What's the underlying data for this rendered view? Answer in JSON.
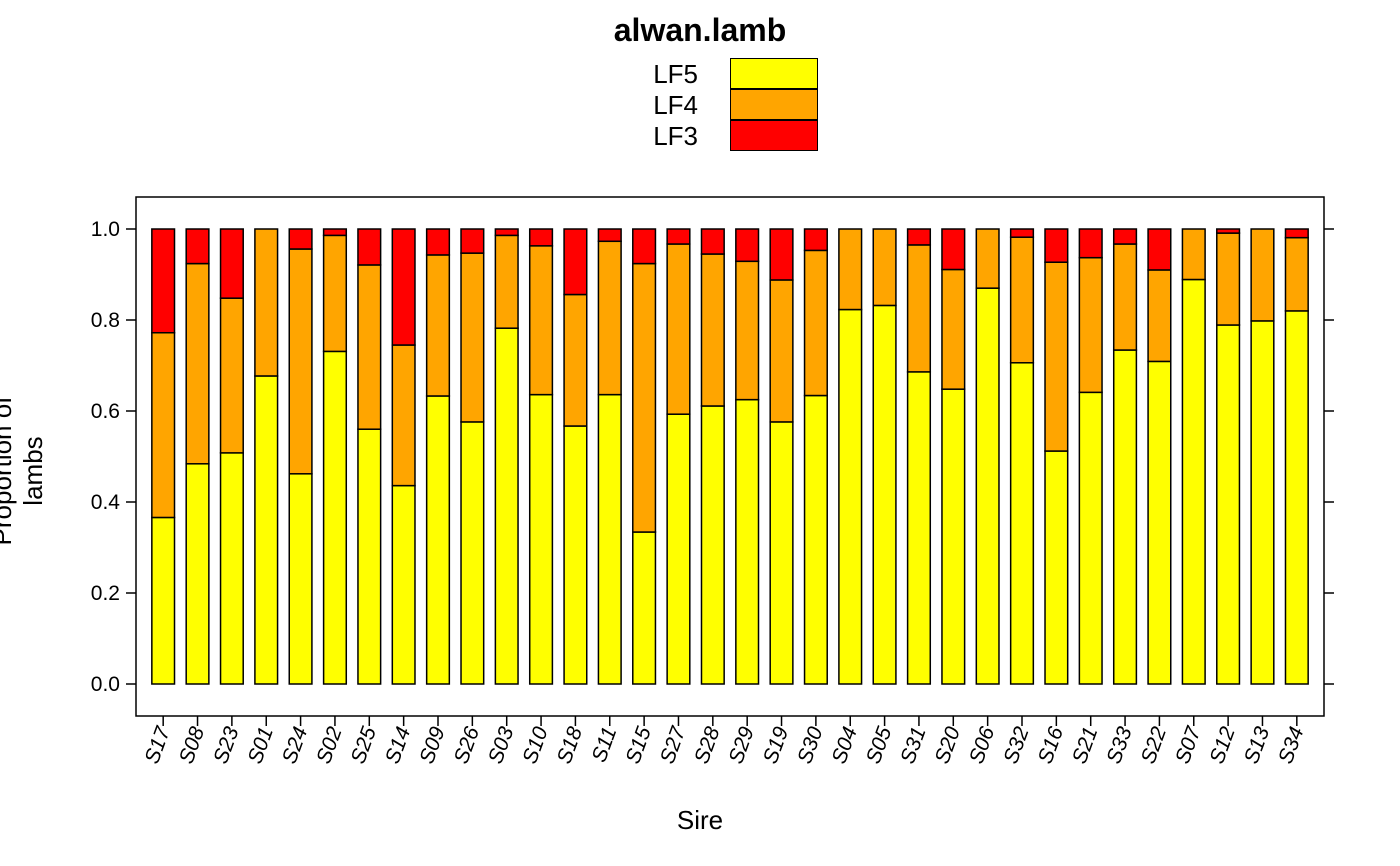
{
  "chart_data": {
    "type": "bar",
    "stacked": true,
    "title": "alwan.lamb",
    "xlabel": "Sire",
    "ylabel": "Proportion of lambs",
    "ylim": [
      0,
      1
    ],
    "yticks": [
      "0.0",
      "0.2",
      "0.4",
      "0.6",
      "0.8",
      "1.0"
    ],
    "legend_position": "top",
    "categories": [
      "S17",
      "S08",
      "S23",
      "S01",
      "S24",
      "S02",
      "S25",
      "S14",
      "S09",
      "S26",
      "S03",
      "S10",
      "S18",
      "S11",
      "S15",
      "S27",
      "S28",
      "S29",
      "S19",
      "S30",
      "S04",
      "S05",
      "S31",
      "S20",
      "S06",
      "S32",
      "S16",
      "S21",
      "S33",
      "S22",
      "S07",
      "S12",
      "S13",
      "S34"
    ],
    "series": [
      {
        "name": "LF5",
        "color": "#ffff00",
        "values": [
          0.366,
          0.484,
          0.508,
          0.677,
          0.462,
          0.731,
          0.56,
          0.436,
          0.633,
          0.576,
          0.782,
          0.636,
          0.567,
          0.636,
          0.334,
          0.593,
          0.611,
          0.625,
          0.576,
          0.634,
          0.823,
          0.832,
          0.686,
          0.648,
          0.87,
          0.706,
          0.512,
          0.641,
          0.734,
          0.709,
          0.889,
          0.789,
          0.798,
          0.82
        ]
      },
      {
        "name": "LF4",
        "color": "#ffa500",
        "values": [
          0.406,
          0.44,
          0.34,
          0.323,
          0.494,
          0.255,
          0.361,
          0.309,
          0.31,
          0.371,
          0.204,
          0.327,
          0.289,
          0.337,
          0.59,
          0.374,
          0.334,
          0.304,
          0.312,
          0.319,
          0.177,
          0.168,
          0.279,
          0.263,
          0.13,
          0.276,
          0.415,
          0.296,
          0.233,
          0.201,
          0.111,
          0.202,
          0.202,
          0.161
        ]
      },
      {
        "name": "LF3",
        "color": "#ff0000",
        "values": [
          0.228,
          0.076,
          0.152,
          0.0,
          0.044,
          0.014,
          0.079,
          0.255,
          0.057,
          0.053,
          0.014,
          0.037,
          0.144,
          0.027,
          0.076,
          0.033,
          0.055,
          0.071,
          0.112,
          0.047,
          0.0,
          0.0,
          0.035,
          0.089,
          0.0,
          0.018,
          0.073,
          0.063,
          0.033,
          0.09,
          0.0,
          0.009,
          0.0,
          0.019
        ]
      }
    ],
    "legend_order": [
      "LF5",
      "LF4",
      "LF3"
    ]
  }
}
